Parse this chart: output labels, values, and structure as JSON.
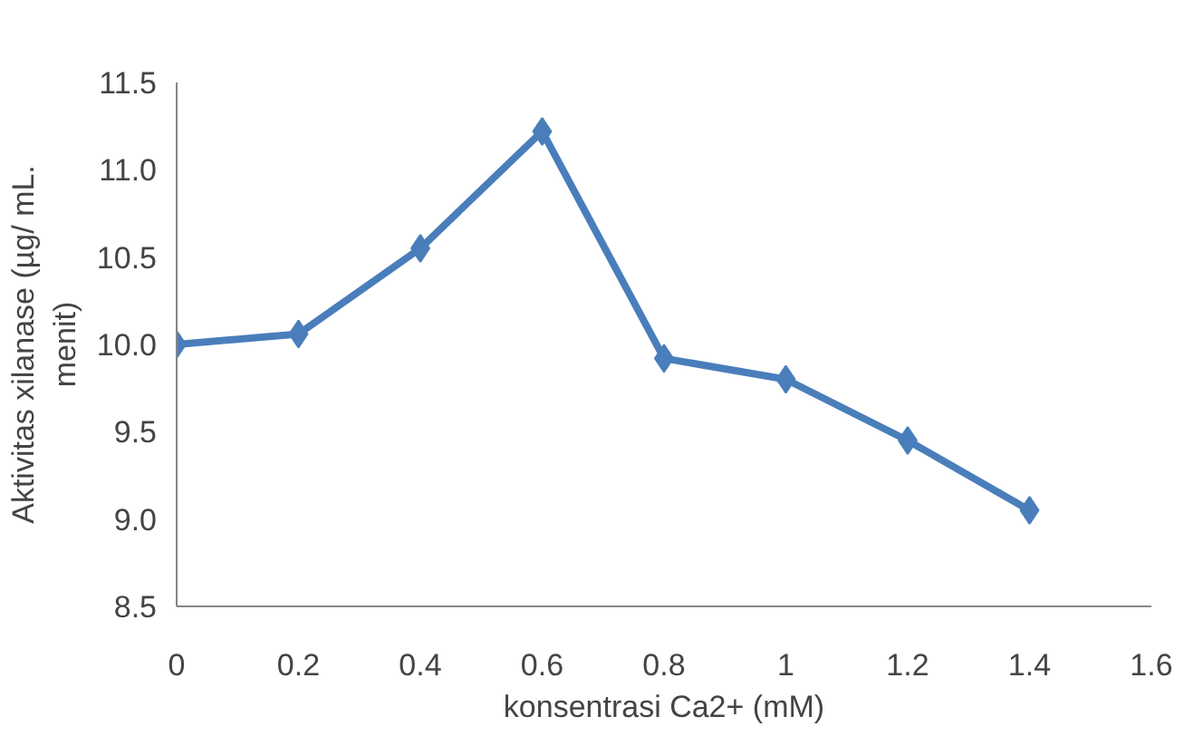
{
  "chart_data": {
    "type": "line",
    "xlabel": "konsentrasi Ca2+ (mM)",
    "ylabel": "Aktivitas xilanase (µg/ mL. menit)",
    "x": [
      0,
      0.2,
      0.4,
      0.6,
      0.8,
      1,
      1.2,
      1.4
    ],
    "series": [
      {
        "color": "#4a7ebb",
        "values": [
          10.0,
          10.06,
          10.55,
          11.22,
          9.92,
          9.8,
          9.45,
          9.05
        ]
      }
    ],
    "xlim": [
      0,
      1.6
    ],
    "xticks": [
      0,
      0.2,
      0.4,
      0.6,
      0.8,
      1,
      1.2,
      1.4,
      1.6
    ],
    "ylim": [
      8.5,
      11.5
    ],
    "yticks": [
      {
        "value": 8.5,
        "label": "8.5"
      },
      {
        "value": 9,
        "label": "9.0"
      },
      {
        "value": 9.5,
        "label": "9.5"
      },
      {
        "value": 10,
        "label": "10.0"
      },
      {
        "value": 10.5,
        "label": "10.5"
      },
      {
        "value": 11,
        "label": "11.0"
      },
      {
        "value": 11.5,
        "label": "11.5"
      }
    ],
    "grid": false,
    "marker": "diamond",
    "line_style": "solid"
  }
}
